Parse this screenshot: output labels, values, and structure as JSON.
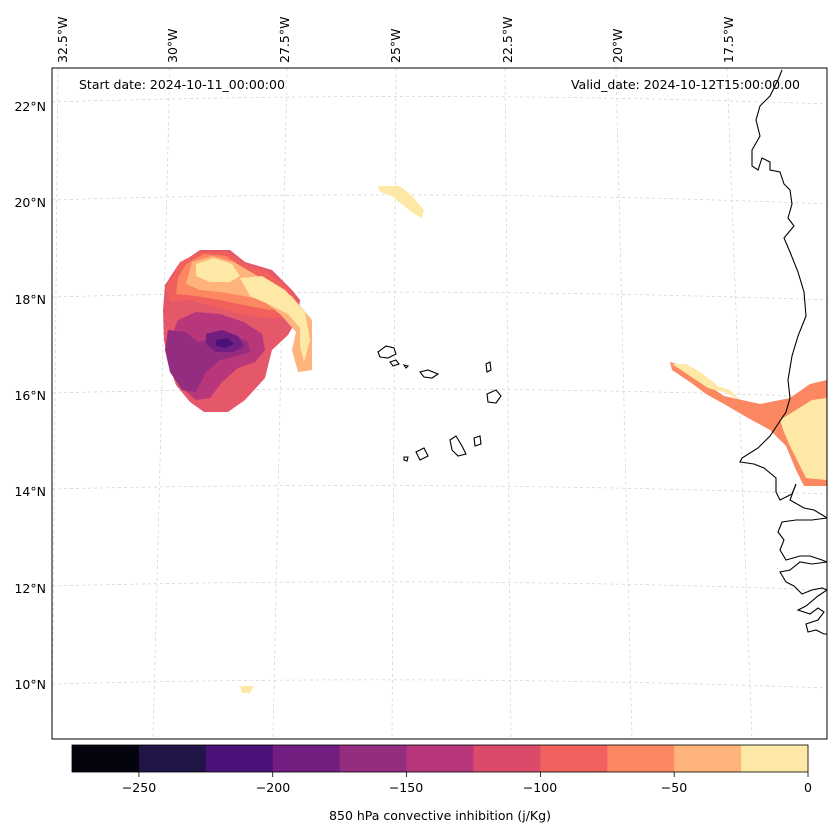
{
  "map": {
    "start_date": "Start date: 2024-10-11_00:00:00",
    "valid_date": "Valid_date: 2024-10-12T15:00:00.00",
    "lon_labels": [
      "32.5°W",
      "30°W",
      "27.5°W",
      "25°W",
      "22.5°W",
      "20°W",
      "17.5°W"
    ],
    "lat_labels": [
      "22°N",
      "20°N",
      "18°N",
      "16°N",
      "14°N",
      "12°N",
      "10°N"
    ],
    "variable": "850 hPa convective inhibition",
    "units": "j/Kg"
  },
  "colorbar": {
    "title": "850 hPa convective inhibition (j/Kg)",
    "tick_labels": [
      "−250",
      "−200",
      "−150",
      "−100",
      "−50",
      "0"
    ],
    "levels": [
      -275,
      -250,
      -225,
      -200,
      -175,
      -150,
      -125,
      -100,
      -75,
      -50,
      -25,
      0
    ],
    "colors": [
      "#04040f",
      "#211446",
      "#4c1179",
      "#721f81",
      "#942c80",
      "#b7377a",
      "#db4a6a",
      "#f1605d",
      "#fb8861",
      "#feb47b",
      "#fee8a5"
    ]
  },
  "colors": {
    "coast": "#000000",
    "grid": "#c8c8c8"
  }
}
